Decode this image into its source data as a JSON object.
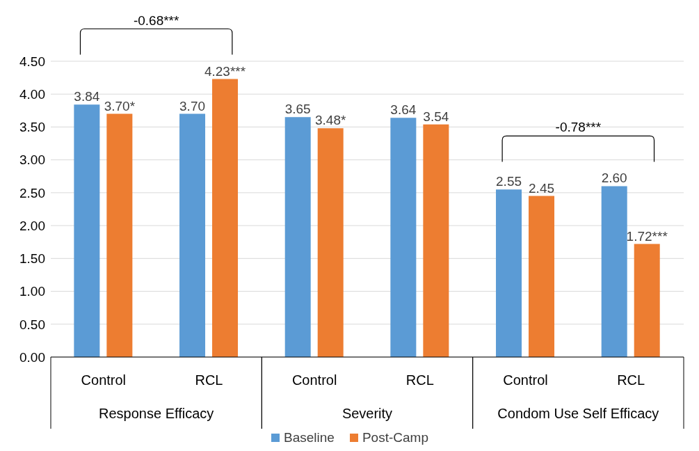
{
  "chart_data": {
    "type": "bar",
    "categories": [
      "Control",
      "RCL",
      "Control",
      "RCL",
      "Control",
      "RCL"
    ],
    "series": [
      {
        "name": "Baseline",
        "color": "#5b9bd5",
        "values": [
          3.84,
          3.7,
          3.65,
          3.64,
          2.55,
          2.6
        ],
        "value_labels": [
          "3.84",
          "3.70",
          "3.65",
          "3.64",
          "2.55",
          "2.60"
        ]
      },
      {
        "name": "Post-Camp",
        "color": "#ed7d31",
        "values": [
          3.7,
          4.23,
          3.48,
          3.54,
          2.45,
          1.72
        ],
        "value_labels": [
          "3.70*",
          "4.23***",
          "3.48*",
          "3.54",
          "2.45",
          "1.72***"
        ]
      }
    ],
    "annotations": [
      "Response Efficacy",
      "Severity",
      "Condom Use Self Efficacy",
      "-0.68***",
      "-0.78***"
    ],
    "ylim": [
      0,
      4.5
    ],
    "yticks": [
      {
        "value": 0,
        "label": "0.00"
      },
      {
        "value": 0.5,
        "label": "0.50"
      },
      {
        "value": 1,
        "label": "1.00"
      },
      {
        "value": 1.5,
        "label": "1.50"
      },
      {
        "value": 2,
        "label": "2.00"
      },
      {
        "value": 2.5,
        "label": "2.50"
      },
      {
        "value": 3,
        "label": "3.00"
      },
      {
        "value": 3.5,
        "label": "3.50"
      },
      {
        "value": 4,
        "label": "4.00"
      },
      {
        "value": 4.5,
        "label": "4.50"
      }
    ],
    "grid": "y",
    "legend": "bottom"
  }
}
